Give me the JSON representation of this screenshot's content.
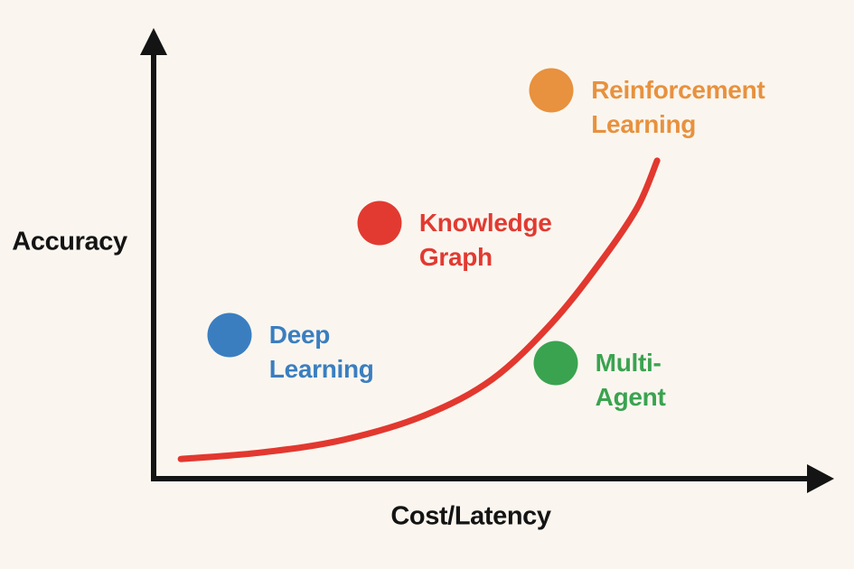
{
  "page": {
    "background_color": "#faf6ef"
  },
  "chart_data": {
    "type": "scatter",
    "title": "",
    "xlabel": "Cost/Latency",
    "ylabel": "Accuracy",
    "axis_color": "#141414",
    "grid": false,
    "legend": "none",
    "x_range_note": "no tick labels; relative units 0-1",
    "y_range_note": "no tick labels; relative units 0-1",
    "points": [
      {
        "label": "Deep Learning",
        "color": "#3b7ec0",
        "x": 0.114,
        "y": 0.325
      },
      {
        "label": "Knowledge\nGraph",
        "color": "#e23a31",
        "x": 0.34,
        "y": 0.582
      },
      {
        "label": "Reinforcement\nLearning",
        "color": "#e8913e",
        "x": 0.599,
        "y": 0.886
      },
      {
        "label": "Multi-Agent",
        "color": "#3aa350",
        "x": 0.605,
        "y": 0.261
      }
    ],
    "curve": {
      "name": "cost-accuracy-exponential-curve",
      "color": "#e2382f",
      "points": [
        [
          0.041,
          0.041
        ],
        [
          0.163,
          0.056
        ],
        [
          0.286,
          0.085
        ],
        [
          0.408,
          0.141
        ],
        [
          0.51,
          0.224
        ],
        [
          0.599,
          0.352
        ],
        [
          0.673,
          0.493
        ],
        [
          0.728,
          0.617
        ],
        [
          0.758,
          0.725
        ]
      ]
    }
  }
}
